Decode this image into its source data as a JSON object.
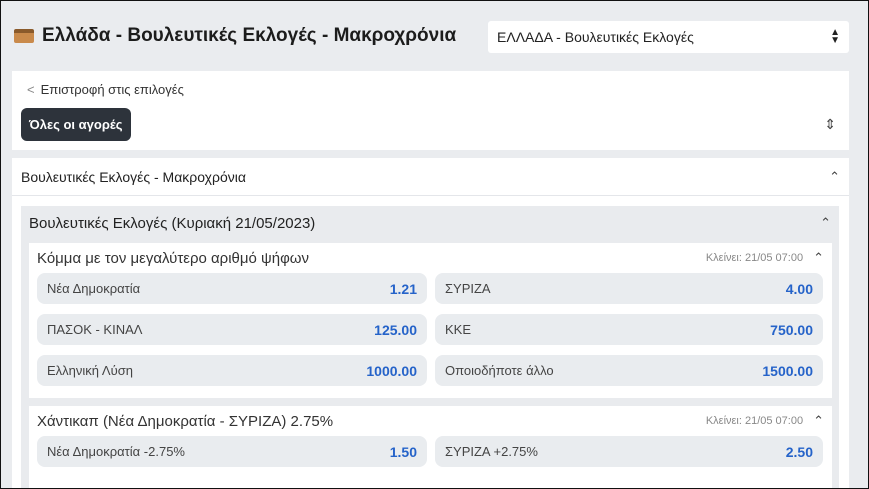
{
  "header": {
    "title": "Ελλάδα - Βουλευτικές Εκλογές - Μακροχρόνια",
    "select_value": "ΕΛΛΑΔΑ - Βουλευτικές Εκλογές"
  },
  "nav": {
    "back_label": "Επιστροφή στις επιλογές",
    "all_markets_label": "Όλες οι αγορές"
  },
  "section": {
    "title": "Βουλευτικές Εκλογές - Μακροχρόνια",
    "event": {
      "title": "Βουλευτικές Εκλογές (Κυριακή 21/05/2023)",
      "markets": [
        {
          "title": "Κόμμα με τον μεγαλύτερο αριθμό ψήφων",
          "closes": "Κλείνει: 21/05 07:00",
          "odds": [
            {
              "label": "Νέα Δημοκρατία",
              "value": "1.21"
            },
            {
              "label": "ΣΥΡΙΖΑ",
              "value": "4.00"
            },
            {
              "label": "ΠΑΣΟΚ - ΚΙΝΑΛ",
              "value": "125.00"
            },
            {
              "label": "ΚΚΕ",
              "value": "750.00"
            },
            {
              "label": "Ελληνική Λύση",
              "value": "1000.00"
            },
            {
              "label": "Οποιοδήποτε άλλο",
              "value": "1500.00"
            }
          ]
        },
        {
          "title": "Χάντικαπ (Νέα Δημοκρατία - ΣΥΡΙΖΑ) 2.75%",
          "closes": "Κλείνει: 21/05 07:00",
          "odds": [
            {
              "label": "Νέα Δημοκρατία -2.75%",
              "value": "1.50"
            },
            {
              "label": "ΣΥΡΙΖΑ +2.75%",
              "value": "2.50"
            }
          ]
        }
      ]
    }
  }
}
